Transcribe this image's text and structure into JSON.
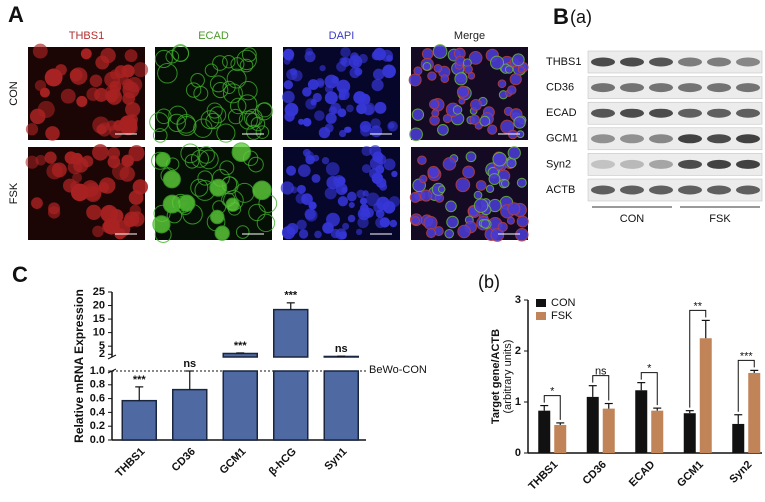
{
  "panel_a": {
    "label": "A",
    "columns": [
      "THBS1",
      "ECAD",
      "DAPI",
      "Merge"
    ],
    "column_colors": [
      "#b03030",
      "#4a9a2a",
      "#3a3ac8",
      "#222222"
    ],
    "rows": [
      "CON",
      "FSK"
    ]
  },
  "panel_b": {
    "label": "B",
    "sublabel": "(a)",
    "blot_rows": [
      "THBS1",
      "CD36",
      "ECAD",
      "GCM1",
      "Syn2",
      "ACTB"
    ],
    "groups": [
      "CON",
      "FSK"
    ]
  },
  "chart_data": [
    {
      "type": "bar",
      "panel_label": "C",
      "ylabel": "Relative mRNA Expression",
      "categories": [
        "THBS1",
        "CD36",
        "GCM1",
        "β-hCG",
        "Syn1"
      ],
      "values": [
        0.57,
        0.73,
        2.3,
        18.5,
        1.2
      ],
      "errors": [
        0.2,
        0.27,
        0.2,
        2.5,
        0.1
      ],
      "significance": [
        "***",
        "ns",
        "***",
        "***",
        "ns"
      ],
      "color": "#4f6aa3",
      "ylim": [
        0,
        25
      ],
      "ybreak": 1,
      "yticks": [
        {
          "value": 0,
          "label": "0.0"
        },
        0.2,
        0.4,
        0.6,
        0.8,
        {
          "value": 1,
          "label": "1.0"
        },
        2,
        5,
        10,
        15,
        20,
        25
      ],
      "reference_line": {
        "value": 1,
        "label": "BeWo-CON"
      }
    },
    {
      "type": "bar",
      "panel_label": "(b)",
      "ylabel": "Target gene/ACTB",
      "ylabel_note": "(arbitrary units)",
      "categories": [
        "THBS1",
        "CD36",
        "ECAD",
        "GCM1",
        "Syn2"
      ],
      "series": [
        {
          "name": "CON",
          "color": "#111111",
          "values": [
            0.83,
            1.1,
            1.23,
            0.78,
            0.57
          ],
          "errors": [
            0.1,
            0.22,
            0.15,
            0.05,
            0.18
          ]
        },
        {
          "name": "FSK",
          "color": "#c08458",
          "values": [
            0.55,
            0.87,
            0.83,
            2.25,
            1.57
          ],
          "errors": [
            0.04,
            0.1,
            0.05,
            0.35,
            0.05
          ]
        }
      ],
      "significance": [
        "*",
        "ns",
        "*",
        "**",
        "***"
      ],
      "ylim": [
        0,
        3
      ],
      "yticks": [
        0,
        1,
        2,
        3
      ],
      "legend": "upper left"
    }
  ]
}
